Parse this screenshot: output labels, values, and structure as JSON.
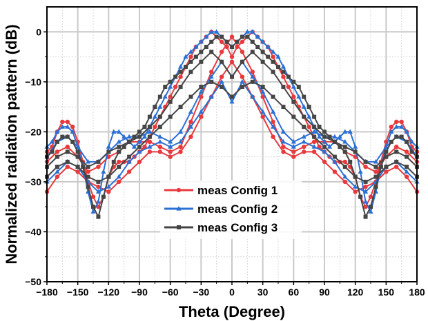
{
  "chart_data": {
    "type": "line",
    "title": "",
    "xlabel": "Theta (Degree)",
    "ylabel": "Normalized radiation pattern (dB)",
    "xlim": [
      -180,
      180
    ],
    "ylim": [
      -50,
      5
    ],
    "xticks": [
      -180,
      -150,
      -120,
      -90,
      -60,
      -30,
      0,
      30,
      60,
      90,
      120,
      150,
      180
    ],
    "yticks": [
      0,
      -10,
      -20,
      -30,
      -40,
      -50
    ],
    "grid": true,
    "legend_position": "lower-center",
    "series": [
      {
        "name": "meas Config 1",
        "color": "#e8393d",
        "marker": "circle",
        "curves": [
          {
            "x": [
              -180,
              -175,
              -170,
              -165,
              -160,
              -155,
              -150,
              -145,
              -140,
              -135,
              -130,
              -125,
              -120,
              -115,
              -110,
              -105,
              -100,
              -95,
              -90,
              -85,
              -80,
              -75,
              -70,
              -65,
              -60,
              -55,
              -50,
              -45,
              -40,
              -35,
              -30,
              -25,
              -20,
              -15,
              -10,
              -5,
              0,
              5,
              10,
              15,
              20,
              25,
              30,
              35,
              40,
              45,
              50,
              55,
              60,
              65,
              70,
              75,
              80,
              85,
              90,
              95,
              100,
              105,
              110,
              115,
              120,
              125,
              130,
              135,
              140,
              145,
              150,
              155,
              160,
              165,
              170,
              175,
              180
            ],
            "y": [
              -24,
              -23,
              -20,
              -18,
              -18,
              -19,
              -22,
              -26,
              -30,
              -33,
              -35,
              -33,
              -29,
              -27,
              -26,
              -26,
              -26,
              -25,
              -24,
              -23,
              -21,
              -19,
              -17,
              -15,
              -13,
              -11,
              -9,
              -7,
              -5,
              -3,
              -2,
              -1,
              0,
              -1,
              -2,
              -3,
              -5,
              -3,
              -2,
              -1,
              0,
              -1,
              -2,
              -3,
              -5,
              -7,
              -9,
              -11,
              -13,
              -15,
              -17,
              -19,
              -21,
              -23,
              -24,
              -25,
              -26,
              -26,
              -26,
              -27,
              -29,
              -33,
              -35,
              -33,
              -30,
              -26,
              -22,
              -19,
              -18,
              -18,
              -20,
              -23,
              -24
            ]
          },
          {
            "x": [
              -180,
              -170,
              -160,
              -150,
              -140,
              -130,
              -120,
              -110,
              -100,
              -90,
              -80,
              -70,
              -60,
              -50,
              -40,
              -30,
              -20,
              -10,
              0,
              10,
              20,
              30,
              40,
              50,
              60,
              70,
              80,
              90,
              100,
              110,
              120,
              130,
              140,
              150,
              160,
              170,
              180
            ],
            "y": [
              -26,
              -24,
              -23,
              -25,
              -28,
              -27,
              -25,
              -24,
              -22,
              -22,
              -22,
              -23,
              -24,
              -23,
              -18,
              -13,
              -8,
              -4,
              -1,
              -4,
              -8,
              -13,
              -18,
              -23,
              -24,
              -23,
              -22,
              -22,
              -22,
              -24,
              -25,
              -27,
              -28,
              -25,
              -23,
              -24,
              -26
            ]
          },
          {
            "x": [
              -180,
              -170,
              -160,
              -150,
              -140,
              -130,
              -120,
              -110,
              -100,
              -90,
              -80,
              -70,
              -60,
              -50,
              -40,
              -30,
              -20,
              -10,
              0,
              10,
              20,
              30,
              40,
              50,
              60,
              70,
              80,
              90,
              100,
              110,
              120,
              130,
              140,
              150,
              160,
              170,
              180
            ],
            "y": [
              -32,
              -29,
              -27,
              -28,
              -30,
              -31,
              -32,
              -30,
              -28,
              -26,
              -24,
              -24,
              -25,
              -24,
              -21,
              -17,
              -13,
              -9,
              -6,
              -9,
              -13,
              -17,
              -21,
              -24,
              -25,
              -24,
              -24,
              -26,
              -28,
              -30,
              -32,
              -31,
              -30,
              -28,
              -27,
              -29,
              -32
            ]
          }
        ]
      },
      {
        "name": "meas Config 2",
        "color": "#2a6fd4",
        "marker": "triangle",
        "curves": [
          {
            "x": [
              -180,
              -175,
              -170,
              -165,
              -160,
              -155,
              -150,
              -145,
              -140,
              -135,
              -130,
              -125,
              -120,
              -115,
              -110,
              -105,
              -100,
              -95,
              -90,
              -85,
              -80,
              -75,
              -70,
              -65,
              -60,
              -55,
              -50,
              -45,
              -40,
              -35,
              -30,
              -25,
              -20,
              -15,
              -10,
              -5,
              0,
              5,
              10,
              15,
              20,
              25,
              30,
              35,
              40,
              45,
              50,
              55,
              60,
              65,
              70,
              75,
              80,
              85,
              90,
              95,
              100,
              105,
              110,
              115,
              120,
              125,
              130,
              135,
              140,
              145,
              150,
              155,
              160,
              165,
              170,
              175,
              180
            ],
            "y": [
              -23,
              -22,
              -20,
              -19,
              -19,
              -20,
              -23,
              -27,
              -32,
              -36,
              -34,
              -28,
              -23,
              -20,
              -20,
              -21,
              -22,
              -23,
              -22,
              -21,
              -19,
              -17,
              -15,
              -13,
              -11,
              -9,
              -7,
              -5,
              -4,
              -3,
              -2,
              -1,
              0,
              0,
              -1,
              -2,
              -3,
              -2,
              -1,
              0,
              0,
              -1,
              -2,
              -3,
              -4,
              -5,
              -7,
              -9,
              -11,
              -13,
              -15,
              -17,
              -19,
              -21,
              -22,
              -23,
              -22,
              -21,
              -20,
              -20,
              -23,
              -28,
              -34,
              -36,
              -32,
              -27,
              -23,
              -20,
              -19,
              -19,
              -20,
              -22,
              -23
            ]
          },
          {
            "x": [
              -180,
              -170,
              -160,
              -150,
              -140,
              -130,
              -120,
              -110,
              -100,
              -90,
              -80,
              -70,
              -60,
              -50,
              -40,
              -30,
              -20,
              -10,
              0,
              10,
              20,
              30,
              40,
              50,
              60,
              70,
              80,
              90,
              100,
              110,
              120,
              130,
              140,
              150,
              160,
              170,
              180
            ],
            "y": [
              -25,
              -22,
              -21,
              -23,
              -26,
              -26,
              -24,
              -22,
              -21,
              -21,
              -20,
              -21,
              -22,
              -20,
              -16,
              -12,
              -9,
              -6,
              -9,
              -6,
              -9,
              -12,
              -16,
              -20,
              -22,
              -21,
              -20,
              -21,
              -21,
              -22,
              -24,
              -26,
              -26,
              -23,
              -21,
              -22,
              -25
            ]
          },
          {
            "x": [
              -180,
              -170,
              -160,
              -150,
              -140,
              -130,
              -120,
              -110,
              -100,
              -90,
              -80,
              -70,
              -60,
              -50,
              -40,
              -30,
              -20,
              -10,
              0,
              10,
              20,
              30,
              40,
              50,
              60,
              70,
              80,
              90,
              100,
              110,
              120,
              130,
              140,
              150,
              160,
              170,
              180
            ],
            "y": [
              -30,
              -28,
              -26,
              -27,
              -30,
              -32,
              -31,
              -29,
              -26,
              -24,
              -23,
              -22,
              -23,
              -22,
              -19,
              -16,
              -13,
              -10,
              -14,
              -10,
              -13,
              -16,
              -19,
              -22,
              -23,
              -22,
              -23,
              -24,
              -26,
              -29,
              -31,
              -32,
              -30,
              -27,
              -26,
              -28,
              -30
            ]
          }
        ]
      },
      {
        "name": "meas Config 3",
        "color": "#454545",
        "marker": "square",
        "curves": [
          {
            "x": [
              -180,
              -175,
              -170,
              -165,
              -160,
              -155,
              -150,
              -145,
              -140,
              -135,
              -130,
              -125,
              -120,
              -115,
              -110,
              -105,
              -100,
              -95,
              -90,
              -85,
              -80,
              -75,
              -70,
              -65,
              -60,
              -55,
              -50,
              -45,
              -40,
              -35,
              -30,
              -25,
              -20,
              -15,
              -10,
              -5,
              0,
              5,
              10,
              15,
              20,
              25,
              30,
              35,
              40,
              45,
              50,
              55,
              60,
              65,
              70,
              75,
              80,
              85,
              90,
              95,
              100,
              105,
              110,
              115,
              120,
              125,
              130,
              135,
              140,
              145,
              150,
              155,
              160,
              165,
              170,
              175,
              180
            ],
            "y": [
              -25,
              -24,
              -22,
              -21,
              -21,
              -22,
              -24,
              -27,
              -31,
              -35,
              -37,
              -33,
              -29,
              -26,
              -24,
              -23,
              -22,
              -21,
              -20,
              -19,
              -17,
              -15,
              -13,
              -11,
              -10,
              -9,
              -8,
              -7,
              -6,
              -5,
              -4,
              -3,
              -2,
              -1,
              -1,
              -2,
              -3,
              -2,
              -1,
              -1,
              -2,
              -3,
              -4,
              -5,
              -6,
              -7,
              -8,
              -9,
              -10,
              -11,
              -13,
              -15,
              -17,
              -19,
              -20,
              -21,
              -22,
              -23,
              -24,
              -26,
              -29,
              -33,
              -37,
              -35,
              -31,
              -27,
              -24,
              -22,
              -21,
              -21,
              -22,
              -24,
              -25
            ]
          },
          {
            "x": [
              -180,
              -170,
              -160,
              -150,
              -140,
              -130,
              -120,
              -110,
              -100,
              -90,
              -80,
              -70,
              -60,
              -50,
              -40,
              -30,
              -20,
              -10,
              0,
              10,
              20,
              30,
              40,
              50,
              60,
              70,
              80,
              90,
              100,
              110,
              120,
              130,
              140,
              150,
              160,
              170,
              180
            ],
            "y": [
              -27,
              -25,
              -24,
              -25,
              -27,
              -26,
              -24,
              -23,
              -22,
              -21,
              -19,
              -17,
              -14,
              -11,
              -8,
              -6,
              -4,
              -6,
              -9,
              -6,
              -4,
              -6,
              -8,
              -11,
              -14,
              -17,
              -19,
              -21,
              -22,
              -23,
              -24,
              -26,
              -27,
              -25,
              -24,
              -25,
              -27
            ]
          },
          {
            "x": [
              -180,
              -170,
              -160,
              -150,
              -140,
              -130,
              -120,
              -110,
              -100,
              -90,
              -80,
              -70,
              -60,
              -50,
              -40,
              -30,
              -20,
              -10,
              0,
              10,
              20,
              30,
              40,
              50,
              60,
              70,
              80,
              90,
              100,
              110,
              120,
              130,
              140,
              150,
              160,
              170,
              180
            ],
            "y": [
              -29,
              -27,
              -26,
              -27,
              -29,
              -30,
              -29,
              -27,
              -25,
              -23,
              -21,
              -19,
              -17,
              -15,
              -13,
              -11,
              -10,
              -11,
              -13,
              -11,
              -10,
              -11,
              -13,
              -15,
              -17,
              -19,
              -21,
              -23,
              -25,
              -27,
              -29,
              -30,
              -29,
              -27,
              -26,
              -27,
              -29
            ]
          }
        ]
      }
    ]
  }
}
